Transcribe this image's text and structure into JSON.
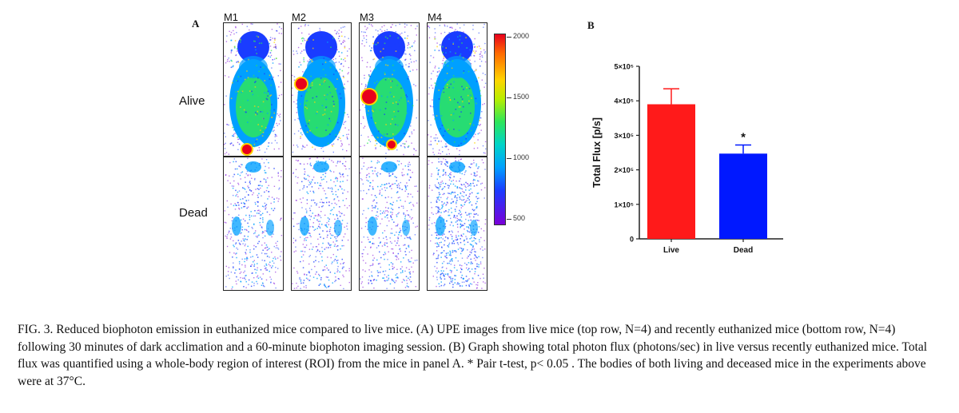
{
  "panel_a": {
    "letter": "A",
    "columns": [
      "M1",
      "M2",
      "M3",
      "M4"
    ],
    "rows": [
      "Alive",
      "Dead"
    ],
    "colorbar": {
      "ticks": [
        "2000",
        "1500",
        "1000",
        "500"
      ],
      "colors": [
        "#e8001c",
        "#ffd400",
        "#2ee65a",
        "#00a0ff",
        "#1a3cff",
        "#7a00d8"
      ]
    }
  },
  "panel_b": {
    "letter": "B"
  },
  "chart_data": {
    "type": "bar",
    "categories": [
      "Live",
      "Dead"
    ],
    "values": [
      390000,
      247000
    ],
    "errors": [
      45000,
      25000
    ],
    "colors": [
      "#ff1a1a",
      "#0018ff"
    ],
    "ylabel": "Total Flux [p/s]",
    "ylim": [
      0,
      500000
    ],
    "yticks": [
      {
        "value": 0,
        "label": "0"
      },
      {
        "value": 100000,
        "label": "1×10⁵"
      },
      {
        "value": 200000,
        "label": "2×10⁵"
      },
      {
        "value": 300000,
        "label": "3×10⁵"
      },
      {
        "value": 400000,
        "label": "4×10⁵"
      },
      {
        "value": 500000,
        "label": "5×10⁵"
      }
    ],
    "annotation": {
      "category": "Dead",
      "text": "*"
    },
    "grid": false
  },
  "caption": "FIG. 3. Reduced biophoton emission in euthanized mice compared to live mice. (A) UPE images from live mice (top row, N=4) and recently euthanized mice (bottom row, N=4) following 30 minutes of dark acclimation and a 60-minute biophoton imaging session. (B) Graph showing total photon flux (photons/sec) in live versus recently euthanized mice. Total flux was quantified using a whole-body region of interest (ROI) from the mice in panel A. * Pair t-test, p< 0.05 . The bodies of both living and deceased mice in the experiments above were at 37°C."
}
